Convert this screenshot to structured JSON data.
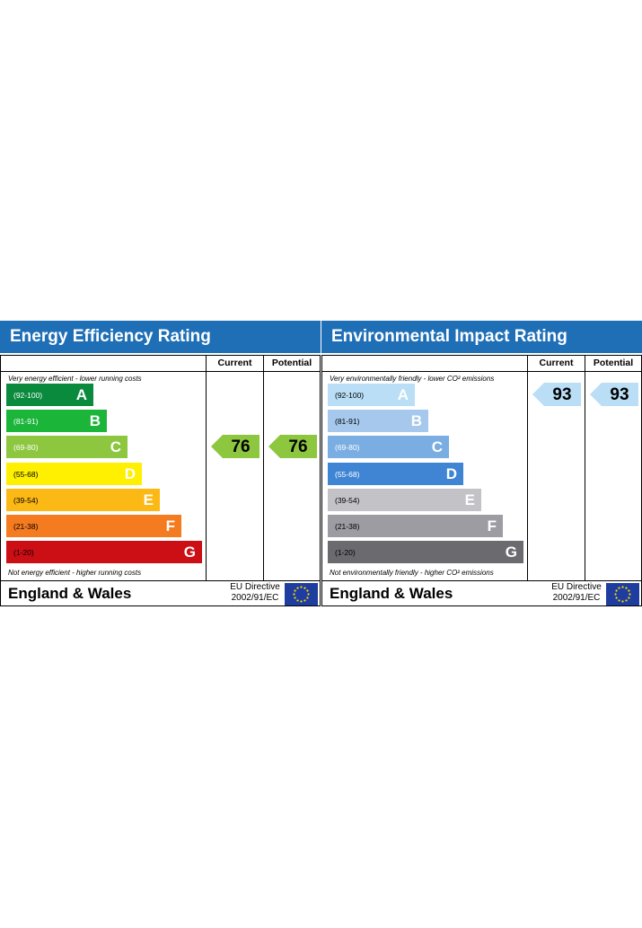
{
  "chart_data": [
    {
      "type": "bar",
      "title": "Energy Efficiency Rating",
      "columns": [
        "Current",
        "Potential"
      ],
      "top_note": "Very energy efficient - lower running costs",
      "bottom_note": "Not energy efficient - higher running costs",
      "bands": [
        {
          "letter": "A",
          "range": "(92-100)",
          "color": "#0a8a3c"
        },
        {
          "letter": "B",
          "range": "(81-91)",
          "color": "#1bb53a"
        },
        {
          "letter": "C",
          "range": "(69-80)",
          "color": "#8dc63f"
        },
        {
          "letter": "D",
          "range": "(55-68)",
          "color": "#ffef00"
        },
        {
          "letter": "E",
          "range": "(39-54)",
          "color": "#fcb814"
        },
        {
          "letter": "F",
          "range": "(21-38)",
          "color": "#f47b20"
        },
        {
          "letter": "G",
          "range": "(1-20)",
          "color": "#cc0e15"
        }
      ],
      "current": {
        "value": "76",
        "band": "C",
        "color": "#8dc63f"
      },
      "potential": {
        "value": "76",
        "band": "C",
        "color": "#8dc63f"
      },
      "footer_title": "England & Wales",
      "directive": [
        "EU Directive",
        "2002/91/EC"
      ]
    },
    {
      "type": "bar",
      "title": "Environmental Impact Rating",
      "columns": [
        "Current",
        "Potential"
      ],
      "top_note": "Very environmentally friendly - lower CO² emissions",
      "bottom_note": "Not environmentally friendly - higher CO² emissions",
      "bands": [
        {
          "letter": "A",
          "range": "(92-100)",
          "color": "#b9def6"
        },
        {
          "letter": "B",
          "range": "(81-91)",
          "color": "#a6c8ec"
        },
        {
          "letter": "C",
          "range": "(69-80)",
          "color": "#7aade2"
        },
        {
          "letter": "D",
          "range": "(55-68)",
          "color": "#3f85d3"
        },
        {
          "letter": "E",
          "range": "(39-54)",
          "color": "#c3c2c7"
        },
        {
          "letter": "F",
          "range": "(21-38)",
          "color": "#9e9ca3"
        },
        {
          "letter": "G",
          "range": "(1-20)",
          "color": "#6b6a6f"
        }
      ],
      "current": {
        "value": "93",
        "band": "A",
        "color": "#b9def6"
      },
      "potential": {
        "value": "93",
        "band": "A",
        "color": "#b9def6"
      },
      "footer_title": "England & Wales",
      "directive": [
        "EU Directive",
        "2002/91/EC"
      ]
    }
  ]
}
